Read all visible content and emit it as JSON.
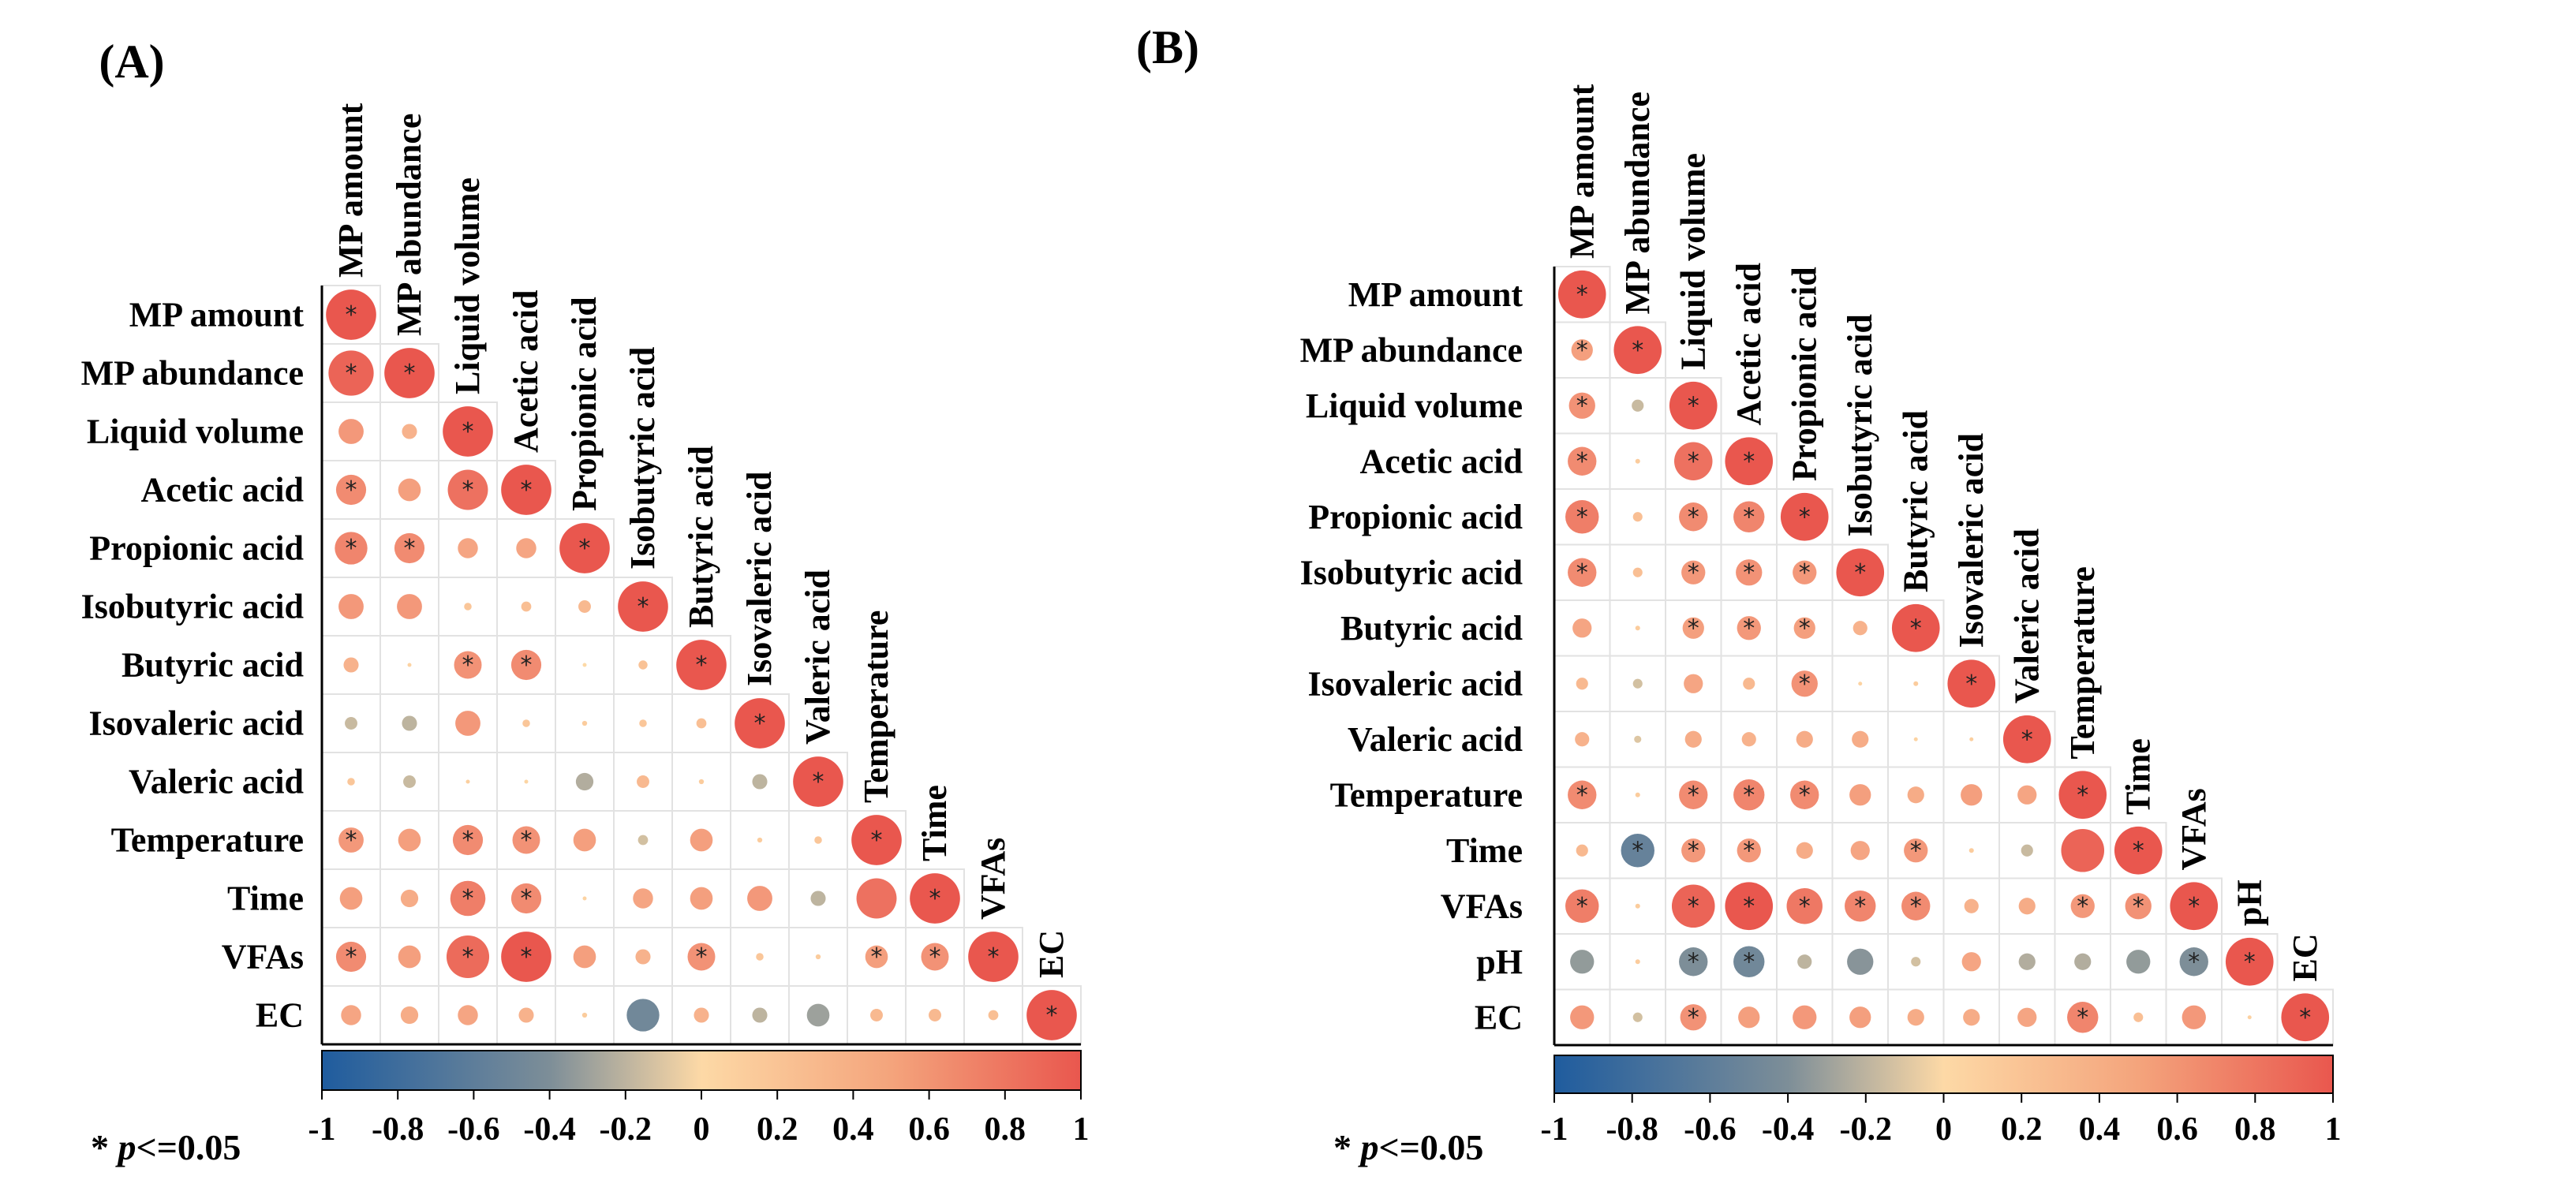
{
  "colors": {
    "neg": "#1f5c9e",
    "mid_neg": "#7d8e98",
    "zero": "#fdd9a6",
    "pos": "#e9574e"
  },
  "chart_data": [
    {
      "type": "heatmap",
      "panel_label": "(A)",
      "variables": [
        "MP amount",
        "MP abundance",
        "Liquid volume",
        "Acetic acid",
        "Propionic acid",
        "Isobutyric acid",
        "Butyric acid",
        "Isovaleric acid",
        "Valeric acid",
        "Temperature",
        "Time",
        "VFAs",
        "EC"
      ],
      "matrix": [
        [
          1.0
        ],
        [
          0.9,
          1.0
        ],
        [
          0.5,
          0.3,
          1.0
        ],
        [
          0.6,
          0.45,
          0.8,
          1.0
        ],
        [
          0.65,
          0.6,
          0.4,
          0.4,
          1.0
        ],
        [
          0.5,
          0.5,
          0.15,
          0.2,
          0.25,
          1.0
        ],
        [
          0.3,
          0.05,
          0.55,
          0.6,
          0.0,
          0.18,
          1.0
        ],
        [
          -0.25,
          -0.3,
          0.5,
          0.15,
          0.1,
          0.15,
          0.2,
          1.0
        ],
        [
          0.15,
          -0.25,
          0.08,
          0.03,
          -0.35,
          0.25,
          0.1,
          -0.3,
          1.0
        ],
        [
          0.5,
          0.45,
          0.6,
          0.55,
          0.45,
          -0.2,
          0.45,
          0.1,
          0.15,
          1.0
        ],
        [
          0.45,
          0.35,
          0.7,
          0.6,
          0.05,
          0.4,
          0.45,
          0.5,
          -0.3,
          0.8,
          1.0
        ],
        [
          0.6,
          0.45,
          0.85,
          1.0,
          0.45,
          0.3,
          0.55,
          0.15,
          0.1,
          0.45,
          0.55,
          1.0
        ],
        [
          0.4,
          0.35,
          0.4,
          0.3,
          0.1,
          -0.65,
          0.3,
          -0.3,
          -0.45,
          0.25,
          0.25,
          0.2,
          1.0
        ]
      ],
      "significant": [
        [
          1
        ],
        [
          1,
          1
        ],
        [
          0,
          0,
          1
        ],
        [
          1,
          0,
          1,
          1
        ],
        [
          1,
          1,
          0,
          0,
          1
        ],
        [
          0,
          0,
          0,
          0,
          0,
          1
        ],
        [
          0,
          0,
          1,
          1,
          0,
          0,
          1
        ],
        [
          0,
          0,
          0,
          0,
          0,
          0,
          0,
          1
        ],
        [
          0,
          0,
          0,
          0,
          0,
          0,
          0,
          0,
          1
        ],
        [
          1,
          0,
          1,
          1,
          0,
          0,
          0,
          0,
          0,
          1
        ],
        [
          0,
          0,
          1,
          1,
          0,
          0,
          0,
          0,
          0,
          0,
          1
        ],
        [
          1,
          0,
          1,
          1,
          0,
          0,
          1,
          0,
          0,
          1,
          1,
          1
        ],
        [
          0,
          0,
          0,
          0,
          0,
          0,
          0,
          0,
          0,
          0,
          0,
          0,
          1
        ]
      ],
      "colorbar_ticks": [
        "-1",
        "-0.8",
        "-0.6",
        "-0.4",
        "-0.2",
        "0",
        "0.2",
        "0.4",
        "0.6",
        "0.8",
        "1"
      ],
      "colorbar_range": [
        -1,
        1
      ],
      "significance_note": "* p<=0.05"
    },
    {
      "type": "heatmap",
      "panel_label": "(B)",
      "variables": [
        "MP amount",
        "MP abundance",
        "Liquid volume",
        "Acetic acid",
        "Propionic acid",
        "Isobutyric acid",
        "Butyric acid",
        "Isovaleric acid",
        "Valeric acid",
        "Temperature",
        "Time",
        "VFAs",
        "pH",
        "EC"
      ],
      "matrix": [
        [
          1.0
        ],
        [
          0.45,
          1.0
        ],
        [
          0.55,
          -0.25,
          1.0
        ],
        [
          0.6,
          0.1,
          0.8,
          1.0
        ],
        [
          0.7,
          0.2,
          0.6,
          0.65,
          1.0
        ],
        [
          0.6,
          0.2,
          0.5,
          0.55,
          0.5,
          1.0
        ],
        [
          0.4,
          0.1,
          0.45,
          0.5,
          0.45,
          0.3,
          1.0
        ],
        [
          0.25,
          -0.2,
          0.4,
          0.25,
          0.55,
          0.05,
          0.1,
          1.0
        ],
        [
          0.3,
          -0.15,
          0.35,
          0.3,
          0.35,
          0.35,
          0.05,
          0.08,
          1.0
        ],
        [
          0.6,
          0.1,
          0.6,
          0.65,
          0.6,
          0.45,
          0.35,
          0.45,
          0.4,
          1.0
        ],
        [
          0.25,
          -0.7,
          0.5,
          0.5,
          0.35,
          0.4,
          0.5,
          0.1,
          -0.25,
          0.9,
          1.0
        ],
        [
          0.7,
          0.1,
          0.9,
          1.0,
          0.75,
          0.65,
          0.6,
          0.3,
          0.35,
          0.5,
          0.55,
          1.0
        ],
        [
          -0.5,
          0.1,
          -0.6,
          -0.65,
          -0.3,
          -0.55,
          -0.2,
          0.4,
          -0.35,
          -0.35,
          -0.5,
          -0.6,
          1.0
        ],
        [
          0.5,
          -0.2,
          0.55,
          0.45,
          0.5,
          0.45,
          0.35,
          0.35,
          0.4,
          0.65,
          0.2,
          0.5,
          0.06,
          1.0
        ]
      ],
      "significant": [
        [
          1
        ],
        [
          1,
          1
        ],
        [
          1,
          0,
          1
        ],
        [
          1,
          0,
          1,
          1
        ],
        [
          1,
          0,
          1,
          1,
          1
        ],
        [
          1,
          0,
          1,
          1,
          1,
          1
        ],
        [
          0,
          0,
          1,
          1,
          1,
          0,
          1
        ],
        [
          0,
          0,
          0,
          0,
          1,
          0,
          0,
          1
        ],
        [
          0,
          0,
          0,
          0,
          0,
          0,
          0,
          0,
          1
        ],
        [
          1,
          0,
          1,
          1,
          1,
          0,
          0,
          0,
          0,
          1
        ],
        [
          0,
          1,
          1,
          1,
          0,
          0,
          1,
          0,
          0,
          0,
          1
        ],
        [
          1,
          0,
          1,
          1,
          1,
          1,
          1,
          0,
          0,
          1,
          1,
          1
        ],
        [
          0,
          0,
          1,
          1,
          0,
          0,
          0,
          0,
          0,
          0,
          0,
          1,
          1
        ],
        [
          0,
          0,
          1,
          0,
          0,
          0,
          0,
          0,
          0,
          1,
          0,
          0,
          0,
          1
        ]
      ],
      "colorbar_ticks": [
        "-1",
        "-0.8",
        "-0.6",
        "-0.4",
        "-0.2",
        "0",
        "0.2",
        "0.4",
        "0.6",
        "0.8",
        "1"
      ],
      "colorbar_range": [
        -1,
        1
      ],
      "significance_note": "* p<=0.05"
    }
  ]
}
